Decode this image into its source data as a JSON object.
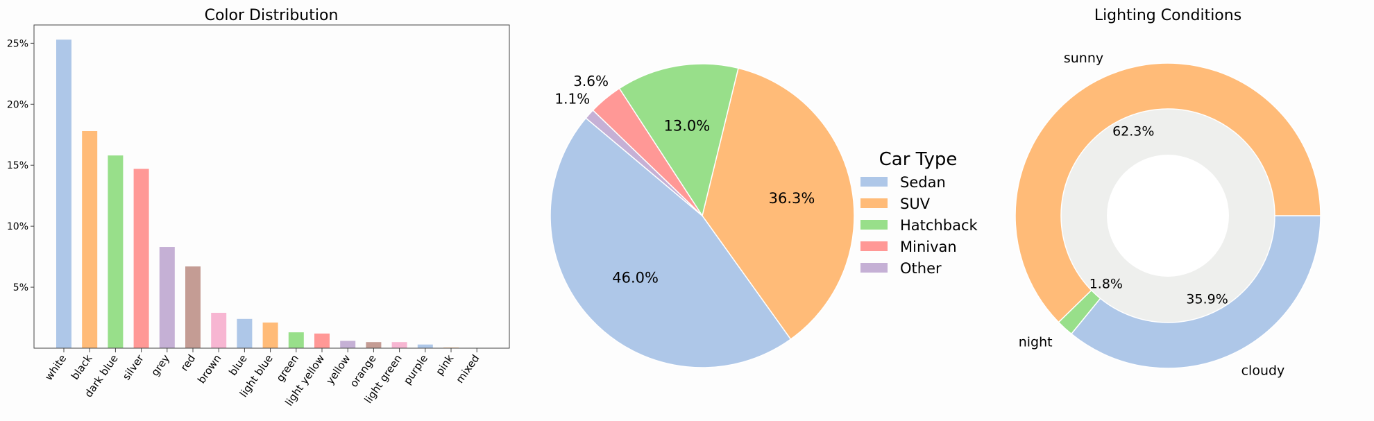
{
  "chart_data": [
    {
      "type": "bar",
      "title": "Color Distribution",
      "xlabel": "",
      "ylabel": "",
      "ylim": [
        0,
        26.5
      ],
      "yticks": [
        5,
        10,
        15,
        20,
        25
      ],
      "ytick_labels": [
        "5%",
        "10%",
        "15%",
        "20%",
        "25%"
      ],
      "categories": [
        "white",
        "black",
        "dark blue",
        "silver",
        "grey",
        "red",
        "brown",
        "blue",
        "light blue",
        "green",
        "light yellow",
        "yellow",
        "orange",
        "light green",
        "purple",
        "pink",
        "mixed"
      ],
      "values": [
        25.3,
        17.8,
        15.8,
        14.7,
        8.3,
        6.7,
        2.9,
        2.4,
        2.1,
        1.3,
        1.2,
        0.6,
        0.5,
        0.5,
        0.3,
        0.05,
        0.03
      ],
      "colors": [
        "#aec7e8",
        "#ffbb78",
        "#98df8a",
        "#ff9896",
        "#c5b0d5",
        "#c49c94",
        "#f7b6d2",
        "#aec7e8",
        "#ffbb78",
        "#98df8a",
        "#ff9896",
        "#c5b0d5",
        "#c49c94",
        "#f7b6d2",
        "#aec7e8",
        "#ffbb78",
        "#98df8a"
      ]
    },
    {
      "type": "pie",
      "title": "",
      "legend_title": "Car Type",
      "legend_position": "right",
      "labels": [
        "Sedan",
        "SUV",
        "Hatchback",
        "Minivan",
        "Other"
      ],
      "values": [
        46.0,
        36.3,
        13.0,
        3.6,
        1.1
      ],
      "pct_labels": [
        "46.0%",
        "36.3%",
        "13.0%",
        "3.6%",
        "1.1%"
      ],
      "colors": [
        "#aec7e8",
        "#ffbb78",
        "#98df8a",
        "#ff9896",
        "#c5b0d5"
      ]
    },
    {
      "type": "pie",
      "variant": "donut",
      "title": "Lighting Conditions",
      "labels": [
        "cloudy",
        "night",
        "sunny"
      ],
      "values": [
        35.9,
        1.8,
        62.3
      ],
      "pct_labels": [
        "35.9%",
        "1.8%",
        "62.3%"
      ],
      "colors": [
        "#aec7e8",
        "#98df8a",
        "#ffbb78"
      ],
      "center_color": "#eeefed"
    }
  ]
}
